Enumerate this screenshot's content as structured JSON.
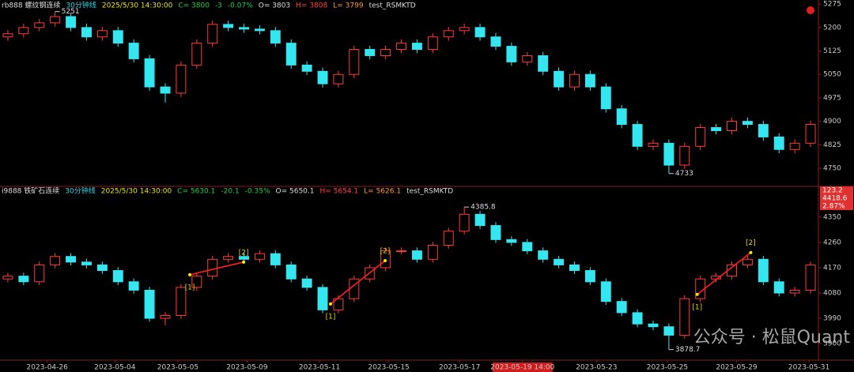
{
  "chart_data": [
    {
      "type": "candlestick",
      "info": [
        {
          "text": "rb888 螺纹钢连续",
          "color": "#dddddd"
        },
        {
          "text": "30分钟线",
          "color": "#33d6e6"
        },
        {
          "text": "2025/5/30 14:30:00",
          "color": "#e6e600"
        },
        {
          "text": "C= 3800",
          "color": "#22cc44"
        },
        {
          "text": "-3",
          "color": "#22cc44"
        },
        {
          "text": "-0.07%",
          "color": "#22cc44"
        },
        {
          "text": "O= 3803",
          "color": "#dddddd"
        },
        {
          "text": "H= 3808",
          "color": "#ff4040"
        },
        {
          "text": "L= 3799",
          "color": "#ff9933"
        },
        {
          "text": "test_RSMKTD",
          "color": "#dddddd"
        }
      ],
      "up_color": "#ff3b3b",
      "down_color": "#33e6f0",
      "xlim": [
        -0.5,
        51.5
      ],
      "ylim": [
        4702,
        5288
      ],
      "yticks": [
        5275,
        5200,
        5125,
        5050,
        4975,
        4900,
        4825,
        4750
      ],
      "open": [
        5170,
        5180,
        5200,
        5215,
        5235,
        5200,
        5170,
        5190,
        5150,
        5100,
        5010,
        4990,
        5080,
        5150,
        5210,
        5200,
        5195,
        5190,
        5150,
        5080,
        5060,
        5020,
        5050,
        5130,
        5110,
        5130,
        5150,
        5130,
        5170,
        5190,
        5200,
        5170,
        5140,
        5090,
        5110,
        5060,
        5010,
        5050,
        5010,
        4940,
        4890,
        4820,
        4830,
        4760,
        4820,
        4880,
        4870,
        4900,
        4890,
        4850,
        4810,
        4830
      ],
      "high": [
        5192,
        5212,
        5227,
        5251,
        5247,
        5212,
        5202,
        5202,
        5162,
        5112,
        5022,
        5092,
        5162,
        5222,
        5222,
        5212,
        5207,
        5202,
        5162,
        5092,
        5072,
        5062,
        5142,
        5142,
        5142,
        5162,
        5162,
        5182,
        5202,
        5212,
        5212,
        5182,
        5152,
        5122,
        5122,
        5072,
        5062,
        5062,
        5022,
        4952,
        4902,
        4842,
        4842,
        4832,
        4892,
        4892,
        4912,
        4912,
        4902,
        4862,
        4842,
        4902
      ],
      "low": [
        5158,
        5168,
        5188,
        5203,
        5188,
        5158,
        5158,
        5138,
        5088,
        4998,
        4960,
        4978,
        5068,
        5138,
        5188,
        5183,
        5178,
        5138,
        5068,
        5048,
        5008,
        5008,
        5038,
        5098,
        5098,
        5118,
        5118,
        5118,
        5158,
        5178,
        5158,
        5128,
        5078,
        5078,
        5048,
        4998,
        4998,
        4998,
        4928,
        4878,
        4808,
        4808,
        4733,
        4748,
        4808,
        4858,
        4858,
        4878,
        4838,
        4798,
        4798,
        4818
      ],
      "close": [
        5180,
        5200,
        5215,
        5235,
        5200,
        5170,
        5190,
        5150,
        5100,
        5010,
        4990,
        5080,
        5150,
        5210,
        5200,
        5195,
        5190,
        5150,
        5080,
        5060,
        5020,
        5050,
        5130,
        5110,
        5130,
        5150,
        5130,
        5170,
        5190,
        5200,
        5170,
        5140,
        5090,
        5110,
        5060,
        5010,
        5050,
        5010,
        4940,
        4890,
        4820,
        4830,
        4760,
        4820,
        4880,
        4870,
        4900,
        4890,
        4850,
        4810,
        4830,
        4890
      ],
      "annotations": [
        {
          "x": 3,
          "y": 5251
        },
        {
          "x": 42,
          "y": 4733
        }
      ]
    },
    {
      "type": "candlestick",
      "info": [
        {
          "text": "i9888 铁矿石连续",
          "color": "#dddddd"
        },
        {
          "text": "30分钟线",
          "color": "#33d6e6"
        },
        {
          "text": "2025/5/30 14:30:00",
          "color": "#e6e600"
        },
        {
          "text": "C= 5630.1",
          "color": "#22cc44"
        },
        {
          "text": "-20.1",
          "color": "#22cc44"
        },
        {
          "text": "-0.35%",
          "color": "#22cc44"
        },
        {
          "text": "O= 5650.1",
          "color": "#dddddd"
        },
        {
          "text": "H= 5654.1",
          "color": "#ff4040"
        },
        {
          "text": "L= 5626.1",
          "color": "#ff9933"
        },
        {
          "text": "test_RSMKTD",
          "color": "#dddddd"
        }
      ],
      "up_color": "#ff3b3b",
      "down_color": "#33e6f0",
      "xlim": [
        -0.5,
        51.5
      ],
      "ylim": [
        3844,
        4448
      ],
      "yticks": [
        4350,
        4260,
        4170,
        4080,
        3990,
        3900
      ],
      "price_tags": [
        "123.2",
        "4418.6",
        "2.87%"
      ],
      "xticks": [
        {
          "value": 2.5,
          "label": "2023-04-26"
        },
        {
          "value": 6.8,
          "label": "2023-05-04"
        },
        {
          "value": 10.8,
          "label": "2023-05-05"
        },
        {
          "value": 15.2,
          "label": "2023-05-09"
        },
        {
          "value": 19.8,
          "label": "2023-05-11"
        },
        {
          "value": 24.2,
          "label": "2023-05-15"
        },
        {
          "value": 28.7,
          "label": "2023-05-17"
        },
        {
          "value": 32.7,
          "label": "2023-05-19 14:00",
          "highlight": true
        },
        {
          "value": 37.4,
          "label": "2023-05-23"
        },
        {
          "value": 41.9,
          "label": "2023-05-25"
        },
        {
          "value": 46.3,
          "label": "2023-05-29"
        },
        {
          "value": 50.9,
          "label": "2023-05-31"
        }
      ],
      "open": [
        4130,
        4140,
        4120,
        4180,
        4210,
        4190,
        4180,
        4160,
        4120,
        4090,
        3990,
        4000,
        4100,
        4140,
        4200,
        4210,
        4200,
        4220,
        4180,
        4130,
        4100,
        4020,
        4060,
        4130,
        4170,
        4230,
        4230,
        4200,
        4250,
        4300,
        4360,
        4320,
        4270,
        4260,
        4230,
        4200,
        4180,
        4160,
        4120,
        4050,
        4010,
        3970,
        3960,
        3930,
        4060,
        4130,
        4140,
        4180,
        4200,
        4120,
        4080,
        4090
      ],
      "high": [
        4152,
        4152,
        4192,
        4222,
        4222,
        4202,
        4192,
        4172,
        4132,
        4102,
        4012,
        4112,
        4152,
        4212,
        4222,
        4222,
        4232,
        4232,
        4192,
        4142,
        4112,
        4072,
        4142,
        4182,
        4242,
        4242,
        4242,
        4262,
        4312,
        4385.8,
        4372,
        4332,
        4282,
        4272,
        4242,
        4212,
        4192,
        4172,
        4132,
        4062,
        4022,
        3982,
        3972,
        4072,
        4142,
        4152,
        4192,
        4212,
        4212,
        4132,
        4102,
        4192
      ],
      "low": [
        4118,
        4108,
        4108,
        4168,
        4178,
        4168,
        4148,
        4108,
        4078,
        3978,
        3965,
        3988,
        4088,
        4128,
        4188,
        4188,
        4188,
        4168,
        4118,
        4088,
        4008,
        4008,
        4048,
        4118,
        4158,
        4218,
        4188,
        4188,
        4238,
        4288,
        4308,
        4258,
        4248,
        4218,
        4188,
        4168,
        4148,
        4108,
        4038,
        3998,
        3958,
        3948,
        3878.7,
        3918,
        4048,
        4118,
        4128,
        4168,
        4108,
        4068,
        4068,
        4078
      ],
      "close": [
        4140,
        4120,
        4180,
        4210,
        4190,
        4180,
        4160,
        4120,
        4090,
        3990,
        4000,
        4100,
        4140,
        4200,
        4210,
        4200,
        4220,
        4180,
        4130,
        4100,
        4020,
        4060,
        4130,
        4170,
        4230,
        4230,
        4200,
        4250,
        4300,
        4360,
        4320,
        4270,
        4260,
        4230,
        4200,
        4180,
        4160,
        4120,
        4050,
        4010,
        3970,
        3960,
        3930,
        4060,
        4130,
        4140,
        4180,
        4200,
        4120,
        4080,
        4090,
        4180
      ],
      "annotations": [
        {
          "x": 29,
          "y": 4385.8
        },
        {
          "x": 42,
          "y": 3878.7
        }
      ],
      "signal_color": "#ff2020",
      "signals": [
        {
          "x": [
            11.56,
            14.98
          ],
          "y": [
            4145,
            4190
          ],
          "start_label": "[1]",
          "end_label": "[2]"
        },
        {
          "x": [
            20.5,
            23.97
          ],
          "y": [
            4041,
            4195
          ],
          "start_label": "[1]",
          "end_label": "[2]"
        },
        {
          "x": [
            43.8,
            47.2
          ],
          "y": [
            4075,
            4224
          ],
          "start_label": "[1]",
          "end_label": "[2]"
        }
      ]
    }
  ],
  "watermark": "公众号 · 松鼠Quant"
}
